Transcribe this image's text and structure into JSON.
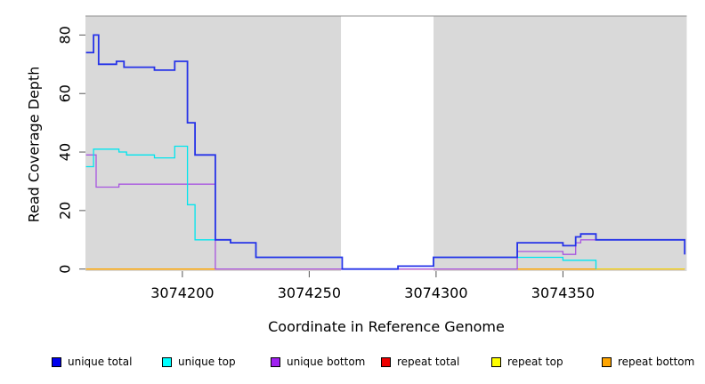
{
  "chart_data": {
    "type": "line",
    "subtype": "step-coverage-plot",
    "title": "",
    "xlabel": "Coordinate in Reference Genome",
    "ylabel": "Read Coverage Depth",
    "x_ticks": [
      3074200,
      3074250,
      3074300,
      3074350
    ],
    "y_ticks": [
      0,
      20,
      40,
      60,
      80
    ],
    "xlim": [
      3074161.8,
      3074398.8
    ],
    "ylim": [
      -0.7,
      86.5
    ],
    "grid": false,
    "plot_background": "#d9d9d9",
    "masked_region": {
      "x_start": 3074262.5,
      "x_end": 3074299,
      "color": "#ffffff"
    },
    "series": [
      {
        "name": "repeat-total",
        "label": "repeat total",
        "color": "#ee0000",
        "width": 1.2,
        "points": [
          [
            3074162,
            0
          ],
          [
            3074398,
            0
          ]
        ]
      },
      {
        "name": "repeat-top",
        "label": "repeat top",
        "color": "#f0e800",
        "width": 1.2,
        "points": [
          [
            3074162,
            0
          ],
          [
            3074398,
            0
          ]
        ]
      },
      {
        "name": "repeat-bottom",
        "label": "repeat bottom",
        "color": "#ffa500",
        "width": 1.4,
        "points": [
          [
            3074162,
            0
          ],
          [
            3074363,
            0
          ]
        ]
      },
      {
        "name": "unique-bottom",
        "label": "unique bottom",
        "color": "#a855e0",
        "width": 1.3,
        "points": [
          [
            3074162,
            39
          ],
          [
            3074166,
            28
          ],
          [
            3074175,
            29
          ],
          [
            3074213,
            0
          ],
          [
            3074332,
            6
          ],
          [
            3074350,
            5
          ],
          [
            3074355,
            9
          ],
          [
            3074357,
            10
          ],
          [
            3074398,
            5
          ]
        ]
      },
      {
        "name": "unique-top",
        "label": "unique top",
        "color": "#00e5ee",
        "width": 1.3,
        "points": [
          [
            3074162,
            35
          ],
          [
            3074165,
            41
          ],
          [
            3074175,
            40
          ],
          [
            3074178,
            39
          ],
          [
            3074189,
            38
          ],
          [
            3074197,
            42
          ],
          [
            3074202,
            22
          ],
          [
            3074205,
            10
          ],
          [
            3074219,
            9
          ],
          [
            3074229,
            4
          ],
          [
            3074263,
            0
          ],
          [
            3074285,
            1
          ],
          [
            3074299,
            4
          ],
          [
            3074350,
            3
          ],
          [
            3074363,
            0
          ]
        ]
      },
      {
        "name": "unique-total",
        "label": "unique total",
        "color": "#2633e8",
        "width": 1.8,
        "points": [
          [
            3074162,
            74
          ],
          [
            3074165,
            80
          ],
          [
            3074167,
            70
          ],
          [
            3074174,
            71
          ],
          [
            3074177,
            69
          ],
          [
            3074189,
            68
          ],
          [
            3074197,
            71
          ],
          [
            3074202,
            50
          ],
          [
            3074205,
            39
          ],
          [
            3074213,
            10
          ],
          [
            3074219,
            9
          ],
          [
            3074229,
            4
          ],
          [
            3074263,
            0
          ],
          [
            3074285,
            1
          ],
          [
            3074299,
            4
          ],
          [
            3074332,
            9
          ],
          [
            3074350,
            8
          ],
          [
            3074355,
            11
          ],
          [
            3074357,
            12
          ],
          [
            3074363,
            10
          ],
          [
            3074398,
            5
          ]
        ]
      }
    ],
    "legend_position": "bottom"
  },
  "legend": {
    "items": [
      {
        "label": "unique total",
        "color": "#0000ee"
      },
      {
        "label": "unique top",
        "color": "#00ffff"
      },
      {
        "label": "unique bottom",
        "color": "#a020f0"
      },
      {
        "label": "repeat total",
        "color": "#ee0000"
      },
      {
        "label": "repeat top",
        "color": "#ffff00"
      },
      {
        "label": "repeat bottom",
        "color": "#ffa500"
      }
    ]
  }
}
